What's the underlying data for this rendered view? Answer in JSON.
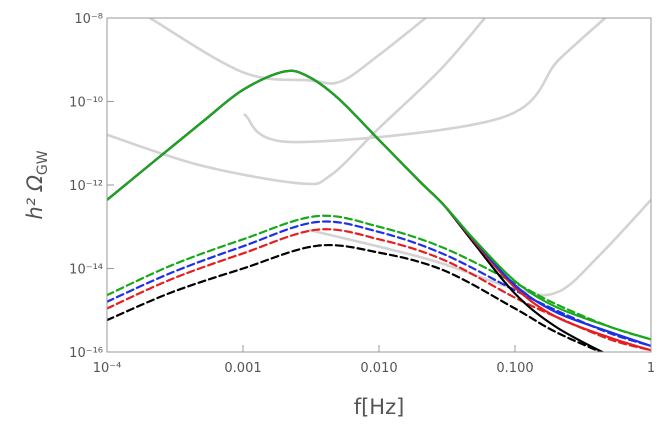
{
  "chart_data": {
    "type": "line",
    "xscale": "log",
    "yscale": "log",
    "xlabel": "f[Hz]",
    "ylabel": "h² Ω",
    "ylabel_subscript": "GW",
    "xlim": [
      0.0001,
      1
    ],
    "ylim": [
      1e-16,
      1e-08
    ],
    "xticks": [
      {
        "value": 0.0001,
        "label": "10⁻⁴"
      },
      {
        "value": 0.001,
        "label": "0.001"
      },
      {
        "value": 0.01,
        "label": "0.010"
      },
      {
        "value": 0.1,
        "label": "0.100"
      },
      1
    ],
    "yticks": [
      {
        "value": 1e-16,
        "label": "10⁻¹⁶"
      },
      {
        "value": 1e-14,
        "label": "10⁻¹⁴"
      },
      {
        "value": 1e-12,
        "label": "10⁻¹²"
      },
      {
        "value": 1e-10,
        "label": "10⁻¹⁰"
      },
      {
        "value": 1e-08,
        "label": "10⁻⁸"
      }
    ],
    "series": [
      {
        "color": "#d3d3d3",
        "x": [
          0.000207,
          0.001,
          0.0031,
          0.0052,
          0.01,
          0.022
        ],
        "values": [
          1e-08,
          5e-10,
          3.2e-10,
          3e-10,
          1.3e-09,
          1e-08
        ]
      },
      {
        "color": "#d3d3d3",
        "x": [
          0.00103,
          0.0023,
          0.078,
          0.21,
          0.46
        ],
        "values": [
          4.8e-11,
          1.07e-11,
          4e-11,
          1e-09,
          1e-08
        ]
      },
      {
        "color": "#d3d3d3",
        "x": [
          0.0001,
          0.00048,
          0.0026,
          0.0044,
          0.01,
          0.028,
          0.06
        ],
        "values": [
          1.6e-11,
          3e-12,
          1.1e-12,
          1.7e-12,
          2.3e-11,
          5.6e-10,
          1e-08
        ]
      },
      {
        "color": "#d3d3d3",
        "x": [
          0.0031,
          0.024,
          0.108,
          0.21,
          0.42,
          1
        ],
        "values": [
          8.3e-14,
          1.6e-14,
          3e-15,
          2.8e-15,
          2.1e-14,
          4.4e-13
        ]
      },
      {
        "color": "#000000",
        "dash": true,
        "x": [
          0.0001,
          0.0003,
          0.001,
          0.0035,
          0.01,
          0.03,
          0.1,
          0.2,
          0.5
        ],
        "values": [
          5.8e-16,
          2.7e-15,
          1e-14,
          3.5e-14,
          2.4e-14,
          9e-15,
          1.1e-15,
          3e-16,
          8e-17
        ]
      },
      {
        "color": "#e61e1e",
        "dash": true,
        "x": [
          0.0001,
          0.0003,
          0.001,
          0.0035,
          0.01,
          0.03,
          0.1,
          0.2,
          0.5,
          1
        ],
        "values": [
          1.1e-15,
          5.6e-15,
          2.3e-14,
          8.5e-14,
          5e-14,
          1.6e-14,
          2e-15,
          7e-16,
          2e-16,
          1.1e-16
        ]
      },
      {
        "color": "#1e30e6",
        "dash": true,
        "x": [
          0.0001,
          0.0003,
          0.001,
          0.0035,
          0.01,
          0.03,
          0.1,
          0.2,
          0.5,
          1
        ],
        "values": [
          1.6e-15,
          8e-15,
          3.4e-14,
          1.3e-13,
          7.5e-14,
          2.2e-14,
          3e-15,
          1e-15,
          2.8e-16,
          1.4e-16
        ]
      },
      {
        "color": "#18a818",
        "dash": true,
        "x": [
          0.0001,
          0.0003,
          0.001,
          0.0035,
          0.01,
          0.03,
          0.1,
          0.2,
          0.5,
          1
        ],
        "values": [
          2.3e-15,
          1.2e-14,
          5e-14,
          1.8e-13,
          1e-13,
          3.1e-14,
          4.5e-15,
          1.4e-15,
          4e-16,
          2e-16
        ]
      },
      {
        "color": "#000000",
        "x": [
          0.0001,
          0.0002,
          0.0005,
          0.001,
          0.002,
          0.003,
          0.005,
          0.01,
          0.02,
          0.03,
          0.05,
          0.1,
          0.2,
          0.5
        ],
        "values": [
          4.4e-13,
          2.8e-12,
          3.2e-11,
          1.9e-10,
          5.2e-10,
          4e-10,
          1.2e-10,
          1.2e-11,
          1.2e-12,
          3.3e-13,
          4e-14,
          2.5e-15,
          4e-16,
          8e-17
        ]
      },
      {
        "color": "#e61e1e",
        "x": [
          0.0001,
          0.0002,
          0.0005,
          0.001,
          0.002,
          0.003,
          0.005,
          0.01,
          0.02,
          0.03,
          0.05,
          0.1,
          0.2,
          0.5,
          1
        ],
        "values": [
          4.4e-13,
          2.8e-12,
          3.2e-11,
          1.9e-10,
          5.2e-10,
          4e-10,
          1.2e-10,
          1.2e-11,
          1.2e-12,
          3.3e-13,
          4.5e-14,
          3.5e-15,
          7e-16,
          2.2e-16,
          1.1e-16
        ]
      },
      {
        "color": "#1e30e6",
        "x": [
          0.0001,
          0.0002,
          0.0005,
          0.001,
          0.002,
          0.003,
          0.005,
          0.01,
          0.02,
          0.03,
          0.05,
          0.1,
          0.2,
          0.5,
          1
        ],
        "values": [
          4.4e-13,
          2.8e-12,
          3.2e-11,
          1.9e-10,
          5.2e-10,
          4e-10,
          1.2e-10,
          1.2e-11,
          1.2e-12,
          3.3e-13,
          4.8e-14,
          4e-15,
          9e-16,
          3e-16,
          1.4e-16
        ]
      },
      {
        "color": "#18a818",
        "x": [
          0.0001,
          0.0002,
          0.0005,
          0.001,
          0.002,
          0.003,
          0.005,
          0.01,
          0.02,
          0.03,
          0.05,
          0.1,
          0.2,
          0.5,
          1
        ],
        "values": [
          4.4e-13,
          2.8e-12,
          3.2e-11,
          1.9e-10,
          5.2e-10,
          4e-10,
          1.2e-10,
          1.2e-11,
          1.2e-12,
          3.3e-13,
          5e-14,
          5e-15,
          1.2e-15,
          4e-16,
          2e-16
        ]
      }
    ]
  }
}
